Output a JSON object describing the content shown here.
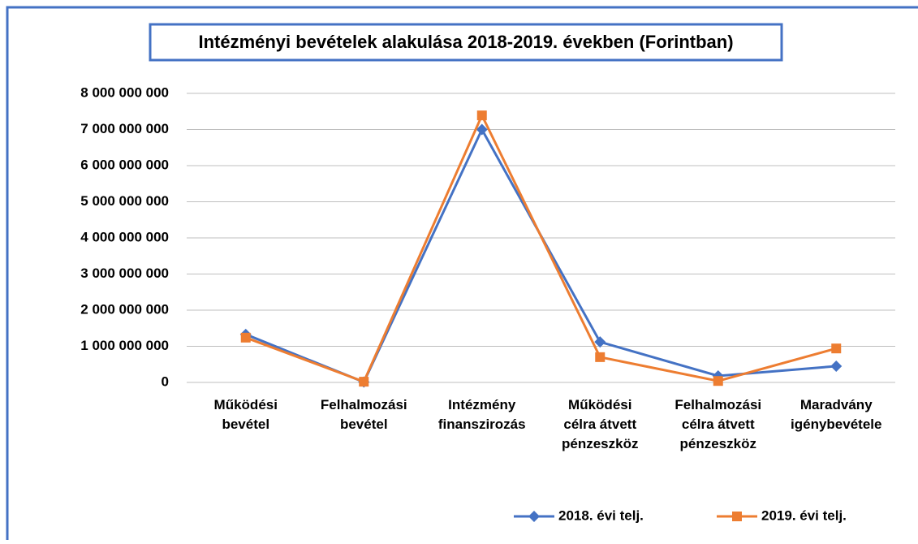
{
  "chart_data": {
    "type": "line",
    "title": "Intézményi bevételek alakulása 2018-2019. években (Forintban)",
    "categories": [
      "Működési bevétel",
      "Felhalmozási bevétel",
      "Intézmény finanszirozás",
      "Működési célra átvett pénzeszköz",
      "Felhalmozási célra átvett pénzeszköz",
      "Maradvány igénybevétele"
    ],
    "series": [
      {
        "name": "2018. évi telj.",
        "color": "#4472c4",
        "marker": "diamond",
        "values": [
          1330000000,
          10000000,
          7000000000,
          1120000000,
          180000000,
          450000000
        ]
      },
      {
        "name": "2019. évi telj.",
        "color": "#ed7d31",
        "marker": "square",
        "values": [
          1240000000,
          20000000,
          7390000000,
          700000000,
          40000000,
          940000000
        ]
      }
    ],
    "ylim": [
      0,
      8000000000
    ],
    "yticks": [
      0,
      {
        "value": 1000000000,
        "label": "1 000 000 000"
      },
      {
        "value": 2000000000,
        "label": "2 000 000 000"
      },
      {
        "value": 3000000000,
        "label": "3 000 000 000"
      },
      {
        "value": 4000000000,
        "label": "4 000 000 000"
      },
      {
        "value": 5000000000,
        "label": "5 000 000 000"
      },
      {
        "value": 6000000000,
        "label": "6 000 000 000"
      },
      {
        "value": 7000000000,
        "label": "7 000 000 000"
      },
      {
        "value": 8000000000,
        "label": "8 000 000 000"
      }
    ],
    "grid": true,
    "legend": "bottom"
  }
}
